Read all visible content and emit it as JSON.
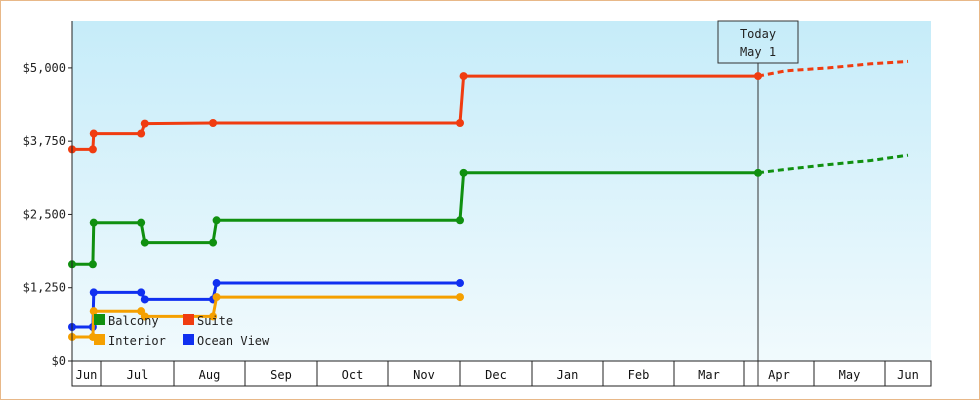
{
  "chart_data": {
    "type": "line",
    "step": true,
    "ylim": [
      0,
      5800
    ],
    "y_ticks": [
      0,
      1250,
      2500,
      3750,
      5000
    ],
    "y_tick_labels": [
      "$0",
      "$1,250",
      "$2,500",
      "$3,750",
      "$5,000"
    ],
    "x_months": [
      "Jun",
      "Jul",
      "Aug",
      "Sep",
      "Oct",
      "Nov",
      "Dec",
      "Jan",
      "Feb",
      "Mar",
      "Apr",
      "May",
      "Jun"
    ],
    "today": {
      "label_line1": "Today",
      "label_line2": "May 1",
      "x": 10.2
    },
    "grid": false,
    "legend": {
      "placement": "bottom-left",
      "entries": [
        {
          "name": "Balcony",
          "color": "#109010"
        },
        {
          "name": "Suite",
          "color": "#f03c10"
        },
        {
          "name": "Interior",
          "color": "#f5a000"
        },
        {
          "name": "Ocean View",
          "color": "#1030f0"
        }
      ]
    },
    "series": [
      {
        "name": "Suite",
        "color": "#f03c10",
        "points": [
          [
            0,
            3610
          ],
          [
            0.72,
            3610
          ],
          [
            0.75,
            3880
          ],
          [
            1.55,
            3880
          ],
          [
            1.6,
            4050
          ],
          [
            2.55,
            4060
          ],
          [
            6.0,
            4060
          ],
          [
            6.05,
            4860
          ],
          [
            10.2,
            4860
          ]
        ],
        "projection": [
          [
            10.2,
            4860
          ],
          [
            10.6,
            4950
          ],
          [
            11.2,
            5000
          ],
          [
            11.8,
            5070
          ],
          [
            12.5,
            5110
          ]
        ]
      },
      {
        "name": "Balcony",
        "color": "#109010",
        "points": [
          [
            0,
            1650
          ],
          [
            0.72,
            1650
          ],
          [
            0.75,
            2360
          ],
          [
            1.55,
            2360
          ],
          [
            1.6,
            2020
          ],
          [
            2.55,
            2020
          ],
          [
            2.6,
            2400
          ],
          [
            6.0,
            2400
          ],
          [
            6.05,
            3210
          ],
          [
            10.2,
            3210
          ]
        ],
        "projection": [
          [
            10.2,
            3210
          ],
          [
            10.6,
            3270
          ],
          [
            11.2,
            3350
          ],
          [
            11.8,
            3420
          ],
          [
            12.5,
            3510
          ]
        ]
      },
      {
        "name": "Ocean View",
        "color": "#1030f0",
        "points": [
          [
            0,
            580
          ],
          [
            0.72,
            580
          ],
          [
            0.75,
            1170
          ],
          [
            1.55,
            1170
          ],
          [
            1.6,
            1050
          ],
          [
            2.55,
            1050
          ],
          [
            2.6,
            1330
          ],
          [
            6.0,
            1330
          ]
        ]
      },
      {
        "name": "Interior",
        "color": "#f5a000",
        "points": [
          [
            0,
            410
          ],
          [
            0.72,
            410
          ],
          [
            0.75,
            850
          ],
          [
            1.55,
            850
          ],
          [
            1.6,
            760
          ],
          [
            2.55,
            760
          ],
          [
            2.6,
            1090
          ],
          [
            6.0,
            1090
          ]
        ]
      }
    ]
  }
}
